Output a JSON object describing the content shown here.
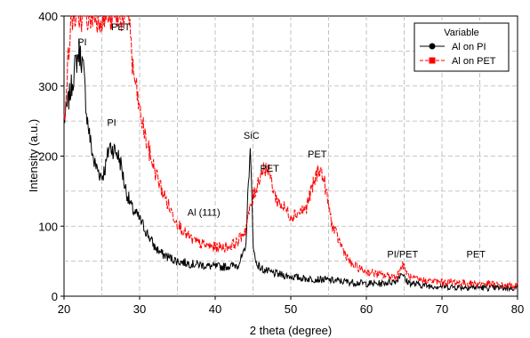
{
  "chart_data": {
    "type": "line",
    "xlabel": "2 theta (degree)",
    "ylabel": "Intensity (a.u.)",
    "xlim": [
      20,
      80
    ],
    "ylim": [
      0,
      400
    ],
    "xticks": [
      20,
      30,
      40,
      50,
      60,
      70,
      80
    ],
    "yticks": [
      0,
      100,
      200,
      300,
      400
    ],
    "grid": true,
    "legend": {
      "title": "Variable",
      "placement": "top-right"
    },
    "series": [
      {
        "name": "Al on PI",
        "color": "#000000",
        "marker": "circle",
        "x": [
          20,
          20.5,
          21,
          21.5,
          22,
          22.3,
          22.6,
          23,
          23.5,
          24,
          24.5,
          25,
          25.5,
          26,
          26.5,
          27,
          27.5,
          28,
          28.5,
          29,
          30,
          31,
          32,
          33,
          34,
          35,
          36,
          37,
          38,
          39,
          40,
          41,
          42,
          43,
          44,
          44.4,
          44.6,
          44.8,
          45,
          45.3,
          46,
          47,
          48,
          50,
          52,
          54,
          56,
          58,
          60,
          62,
          64,
          64.7,
          65.2,
          66,
          68,
          70,
          72,
          74,
          76,
          78,
          80
        ],
        "y": [
          250,
          275,
          300,
          330,
          350,
          340,
          320,
          260,
          220,
          190,
          180,
          170,
          185,
          215,
          210,
          205,
          190,
          160,
          140,
          125,
          110,
          90,
          70,
          60,
          55,
          50,
          48,
          46,
          45,
          43,
          42,
          42,
          43,
          45,
          65,
          160,
          215,
          160,
          80,
          50,
          40,
          35,
          32,
          28,
          25,
          24,
          22,
          20,
          18,
          18,
          22,
          35,
          22,
          18,
          15,
          14,
          13,
          13,
          12,
          12,
          12
        ]
      },
      {
        "name": "Al on PET",
        "color": "#ff0000",
        "marker": "square",
        "x": [
          20,
          20.5,
          21,
          21.5,
          22,
          22.5,
          23,
          24,
          25,
          26,
          27,
          28,
          28.7,
          29,
          29.5,
          30,
          31,
          32,
          33,
          34,
          35,
          36,
          37,
          38,
          39,
          40,
          41,
          42,
          43,
          44,
          44.5,
          45,
          46,
          46.6,
          47.2,
          48,
          50,
          52,
          53,
          53.8,
          54.5,
          55.5,
          57,
          58,
          60,
          62,
          64,
          64.8,
          65.5,
          66,
          68,
          70,
          72,
          74,
          76,
          78,
          80
        ],
        "y": [
          250,
          330,
          400,
          400,
          400,
          400,
          400,
          400,
          400,
          400,
          400,
          400,
          400,
          330,
          300,
          265,
          215,
          180,
          150,
          125,
          105,
          90,
          80,
          75,
          72,
          70,
          70,
          72,
          78,
          95,
          120,
          140,
          175,
          185,
          175,
          140,
          115,
          125,
          160,
          185,
          160,
          100,
          65,
          45,
          35,
          30,
          28,
          45,
          30,
          25,
          22,
          20,
          20,
          18,
          18,
          15,
          15
        ]
      }
    ],
    "annotations": [
      {
        "text": "PI",
        "x": 22.4,
        "y": 358
      },
      {
        "text": "PET",
        "x": 27.5,
        "y": 380
      },
      {
        "text": "PI",
        "x": 26.3,
        "y": 243
      },
      {
        "text": "Al (111)",
        "x": 38.5,
        "y": 115
      },
      {
        "text": "SiC",
        "x": 44.8,
        "y": 225
      },
      {
        "text": "PET",
        "x": 47.2,
        "y": 178
      },
      {
        "text": "PET",
        "x": 53.5,
        "y": 198
      },
      {
        "text": "PI/PET",
        "x": 64.8,
        "y": 55
      },
      {
        "text": "PET",
        "x": 74.5,
        "y": 55
      }
    ]
  }
}
